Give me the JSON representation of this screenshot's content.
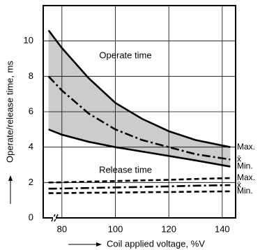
{
  "chart_data": {
    "type": "line",
    "x_label": "Coil applied voltage, %V",
    "y_label": "Operate/release time, ms",
    "annotations": [
      "Operate time",
      "Release time"
    ],
    "x": [
      75,
      80,
      90,
      100,
      110,
      120,
      130,
      143
    ],
    "series": [
      {
        "name": "Max.",
        "color": "#000000",
        "style": "solid",
        "values": [
          10.6,
          9.6,
          7.9,
          6.5,
          5.6,
          4.9,
          4.4,
          4.0
        ]
      },
      {
        "name": "x̄",
        "color": "#000000",
        "style": "dashdot",
        "values": [
          8.0,
          7.2,
          5.9,
          5.0,
          4.4,
          4.0,
          3.6,
          3.3
        ]
      },
      {
        "name": "Min.",
        "color": "#000000",
        "style": "solid",
        "values": [
          5.0,
          4.7,
          4.3,
          4.0,
          3.75,
          3.5,
          3.25,
          2.9
        ]
      },
      {
        "name": "Max.",
        "color": "#000000",
        "style": "dashed",
        "values": [
          2.0,
          2.01,
          2.05,
          2.08,
          2.12,
          2.15,
          2.2,
          2.25
        ]
      },
      {
        "name": "x̄",
        "color": "#000000",
        "style": "dashdot",
        "values": [
          1.65,
          1.66,
          1.69,
          1.72,
          1.75,
          1.78,
          1.82,
          1.85
        ]
      },
      {
        "name": "Min.",
        "color": "#000000",
        "style": "dashed",
        "values": [
          1.4,
          1.4,
          1.42,
          1.43,
          1.45,
          1.46,
          1.48,
          1.5
        ]
      }
    ],
    "fill_between": [
      0,
      2
    ],
    "fill_color": "#cccccc",
    "xlim": [
      73,
      145
    ],
    "xticks": [
      80,
      100,
      120,
      140
    ],
    "ylim": [
      0,
      12
    ],
    "yticks": [
      0,
      2,
      4,
      6,
      8,
      10
    ],
    "grid": true
  }
}
